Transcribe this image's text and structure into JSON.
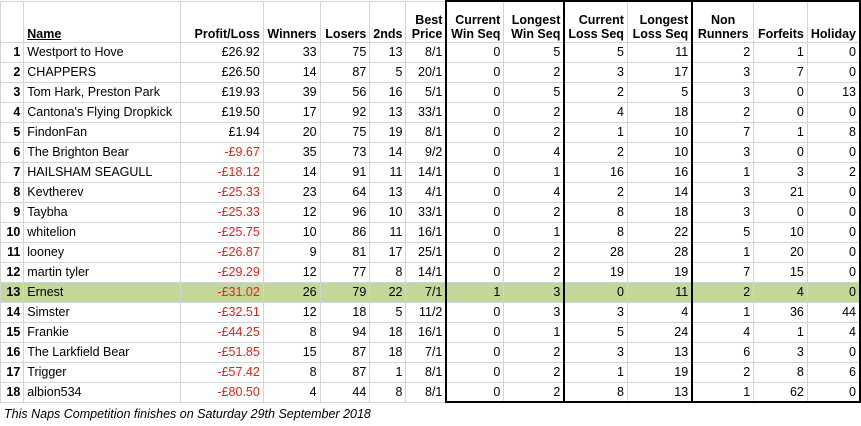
{
  "headers": {
    "name": "Name",
    "profit_loss": "Profit/Loss",
    "winners": "Winners",
    "losers": "Losers",
    "seconds": "2nds",
    "best_price": [
      "Best",
      "Price"
    ],
    "current_win_seq": [
      "Current",
      "Win Seq"
    ],
    "longest_win_seq": [
      "Longest",
      "Win Seq"
    ],
    "current_loss_seq": [
      "Current",
      "Loss Seq"
    ],
    "longest_loss_seq": [
      "Longest",
      "Loss Seq"
    ],
    "non_runners": [
      "Non",
      "Runners"
    ],
    "forfeits": "Forfeits",
    "holiday": "Holiday"
  },
  "rows": [
    {
      "rank": "1",
      "name": "Westport to Hove",
      "pl": "£26.92",
      "winners": "33",
      "losers": "75",
      "seconds": "13",
      "best": "8/1",
      "cws": "0",
      "lws": "5",
      "cls": "5",
      "lls": "11",
      "nr": "2",
      "forfeits": "1",
      "holiday": "0",
      "negative": false
    },
    {
      "rank": "2",
      "name": "CHAPPERS",
      "pl": "£26.50",
      "winners": "14",
      "losers": "87",
      "seconds": "5",
      "best": "20/1",
      "cws": "0",
      "lws": "2",
      "cls": "3",
      "lls": "17",
      "nr": "3",
      "forfeits": "7",
      "holiday": "0",
      "negative": false
    },
    {
      "rank": "3",
      "name": "Tom Hark, Preston Park",
      "pl": "£19.93",
      "winners": "39",
      "losers": "56",
      "seconds": "16",
      "best": "5/1",
      "cws": "0",
      "lws": "5",
      "cls": "2",
      "lls": "5",
      "nr": "3",
      "forfeits": "0",
      "holiday": "13",
      "negative": false
    },
    {
      "rank": "4",
      "name": "Cantona's Flying Dropkick",
      "pl": "£19.50",
      "winners": "17",
      "losers": "92",
      "seconds": "13",
      "best": "33/1",
      "cws": "0",
      "lws": "2",
      "cls": "4",
      "lls": "18",
      "nr": "2",
      "forfeits": "0",
      "holiday": "0",
      "negative": false
    },
    {
      "rank": "5",
      "name": "FindonFan",
      "pl": "£1.94",
      "winners": "20",
      "losers": "75",
      "seconds": "19",
      "best": "8/1",
      "cws": "0",
      "lws": "2",
      "cls": "1",
      "lls": "10",
      "nr": "7",
      "forfeits": "1",
      "holiday": "8",
      "negative": false
    },
    {
      "rank": "6",
      "name": "The Brighton Bear",
      "pl": "-£9.67",
      "winners": "35",
      "losers": "73",
      "seconds": "14",
      "best": "9/2",
      "cws": "0",
      "lws": "4",
      "cls": "2",
      "lls": "10",
      "nr": "3",
      "forfeits": "0",
      "holiday": "0",
      "negative": true
    },
    {
      "rank": "7",
      "name": "HAILSHAM SEAGULL",
      "pl": "-£18.12",
      "winners": "14",
      "losers": "91",
      "seconds": "11",
      "best": "14/1",
      "cws": "0",
      "lws": "1",
      "cls": "16",
      "lls": "16",
      "nr": "1",
      "forfeits": "3",
      "holiday": "2",
      "negative": true
    },
    {
      "rank": "8",
      "name": "Kevtherev",
      "pl": "-£25.33",
      "winners": "23",
      "losers": "64",
      "seconds": "13",
      "best": "4/1",
      "cws": "0",
      "lws": "4",
      "cls": "2",
      "lls": "14",
      "nr": "3",
      "forfeits": "21",
      "holiday": "0",
      "negative": true
    },
    {
      "rank": "9",
      "name": "Taybha",
      "pl": "-£25.33",
      "winners": "12",
      "losers": "96",
      "seconds": "10",
      "best": "33/1",
      "cws": "0",
      "lws": "2",
      "cls": "8",
      "lls": "18",
      "nr": "3",
      "forfeits": "0",
      "holiday": "0",
      "negative": true
    },
    {
      "rank": "10",
      "name": "whitelion",
      "pl": "-£25.75",
      "winners": "10",
      "losers": "86",
      "seconds": "11",
      "best": "16/1",
      "cws": "0",
      "lws": "1",
      "cls": "8",
      "lls": "22",
      "nr": "5",
      "forfeits": "10",
      "holiday": "0",
      "negative": true
    },
    {
      "rank": "11",
      "name": "looney",
      "pl": "-£26.87",
      "winners": "9",
      "losers": "81",
      "seconds": "17",
      "best": "25/1",
      "cws": "0",
      "lws": "2",
      "cls": "28",
      "lls": "28",
      "nr": "1",
      "forfeits": "20",
      "holiday": "0",
      "negative": true
    },
    {
      "rank": "12",
      "name": "martin tyler",
      "pl": "-£29.29",
      "winners": "12",
      "losers": "77",
      "seconds": "8",
      "best": "14/1",
      "cws": "0",
      "lws": "2",
      "cls": "19",
      "lls": "19",
      "nr": "7",
      "forfeits": "15",
      "holiday": "0",
      "negative": true
    },
    {
      "rank": "13",
      "name": "Ernest",
      "pl": "-£31.02",
      "winners": "26",
      "losers": "79",
      "seconds": "22",
      "best": "7/1",
      "cws": "1",
      "lws": "3",
      "cls": "0",
      "lls": "11",
      "nr": "2",
      "forfeits": "4",
      "holiday": "0",
      "negative": true,
      "highlight": true
    },
    {
      "rank": "14",
      "name": "Simster",
      "pl": "-£32.51",
      "winners": "12",
      "losers": "18",
      "seconds": "5",
      "best": "11/2",
      "cws": "0",
      "lws": "3",
      "cls": "3",
      "lls": "4",
      "nr": "1",
      "forfeits": "36",
      "holiday": "44",
      "negative": true
    },
    {
      "rank": "15",
      "name": "Frankie",
      "pl": "-£44.25",
      "winners": "8",
      "losers": "94",
      "seconds": "18",
      "best": "16/1",
      "cws": "0",
      "lws": "1",
      "cls": "5",
      "lls": "24",
      "nr": "4",
      "forfeits": "1",
      "holiday": "4",
      "negative": true
    },
    {
      "rank": "16",
      "name": "The Larkfield Bear",
      "pl": "-£51.85",
      "winners": "15",
      "losers": "87",
      "seconds": "18",
      "best": "7/1",
      "cws": "0",
      "lws": "2",
      "cls": "3",
      "lls": "13",
      "nr": "6",
      "forfeits": "3",
      "holiday": "0",
      "negative": true
    },
    {
      "rank": "17",
      "name": "Trigger",
      "pl": "-£57.42",
      "winners": "8",
      "losers": "87",
      "seconds": "1",
      "best": "8/1",
      "cws": "0",
      "lws": "2",
      "cls": "1",
      "lls": "19",
      "nr": "2",
      "forfeits": "8",
      "holiday": "6",
      "negative": true
    },
    {
      "rank": "18",
      "name": "albion534",
      "pl": "-£80.50",
      "winners": "4",
      "losers": "44",
      "seconds": "8",
      "best": "8/1",
      "cws": "0",
      "lws": "2",
      "cls": "8",
      "lls": "13",
      "nr": "1",
      "forfeits": "62",
      "holiday": "0",
      "negative": true
    }
  ],
  "footer": "This Naps Competition finishes on Saturday 29th September 2018",
  "colors": {
    "negative": "#e0241b",
    "highlight_row": "#c4d79b",
    "grid": "#d4d4d4"
  }
}
